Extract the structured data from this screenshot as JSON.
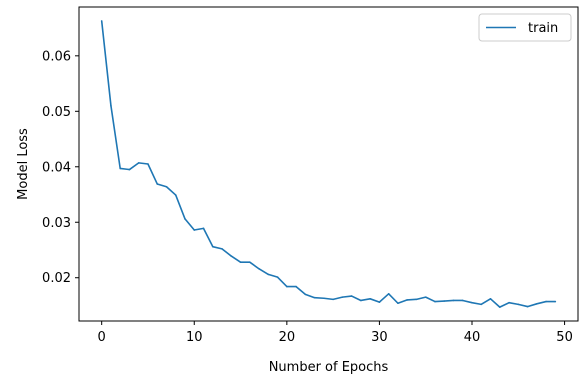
{
  "chart_data": {
    "type": "line",
    "xlabel": "Number of Epochs",
    "ylabel": "Model Loss",
    "xlim": [
      -2.45,
      51.45
    ],
    "ylim": [
      0.0122,
      0.0688
    ],
    "xticks": [
      0,
      10,
      20,
      30,
      40,
      50
    ],
    "yticks": [
      0.02,
      0.03,
      0.04,
      0.05,
      0.06
    ],
    "xtick_labels": [
      "0",
      "10",
      "20",
      "30",
      "40",
      "50"
    ],
    "ytick_labels": [
      "0.02",
      "0.03",
      "0.04",
      "0.05",
      "0.06"
    ],
    "grid": false,
    "legend_position": "top-right",
    "series": [
      {
        "name": "train",
        "color": "#1f77b4",
        "x": [
          0,
          1,
          2,
          3,
          4,
          5,
          6,
          7,
          8,
          9,
          10,
          11,
          12,
          13,
          14,
          15,
          16,
          17,
          18,
          19,
          20,
          21,
          22,
          23,
          24,
          25,
          26,
          27,
          28,
          29,
          30,
          31,
          32,
          33,
          34,
          35,
          36,
          37,
          38,
          39,
          40,
          41,
          42,
          43,
          44,
          45,
          46,
          47,
          48,
          49
        ],
        "y": [
          0.0663,
          0.051,
          0.0397,
          0.0395,
          0.0407,
          0.0405,
          0.0369,
          0.0364,
          0.0349,
          0.0306,
          0.0286,
          0.0289,
          0.0256,
          0.0252,
          0.0239,
          0.0228,
          0.0228,
          0.0216,
          0.0206,
          0.0201,
          0.0184,
          0.0184,
          0.017,
          0.0164,
          0.0163,
          0.0161,
          0.0165,
          0.0167,
          0.0159,
          0.0162,
          0.0156,
          0.0171,
          0.0154,
          0.016,
          0.0161,
          0.0165,
          0.0157,
          0.0158,
          0.0159,
          0.0159,
          0.0155,
          0.0152,
          0.0162,
          0.0147,
          0.0155,
          0.0152,
          0.0148,
          0.0153,
          0.0157,
          0.0157
        ]
      }
    ]
  }
}
